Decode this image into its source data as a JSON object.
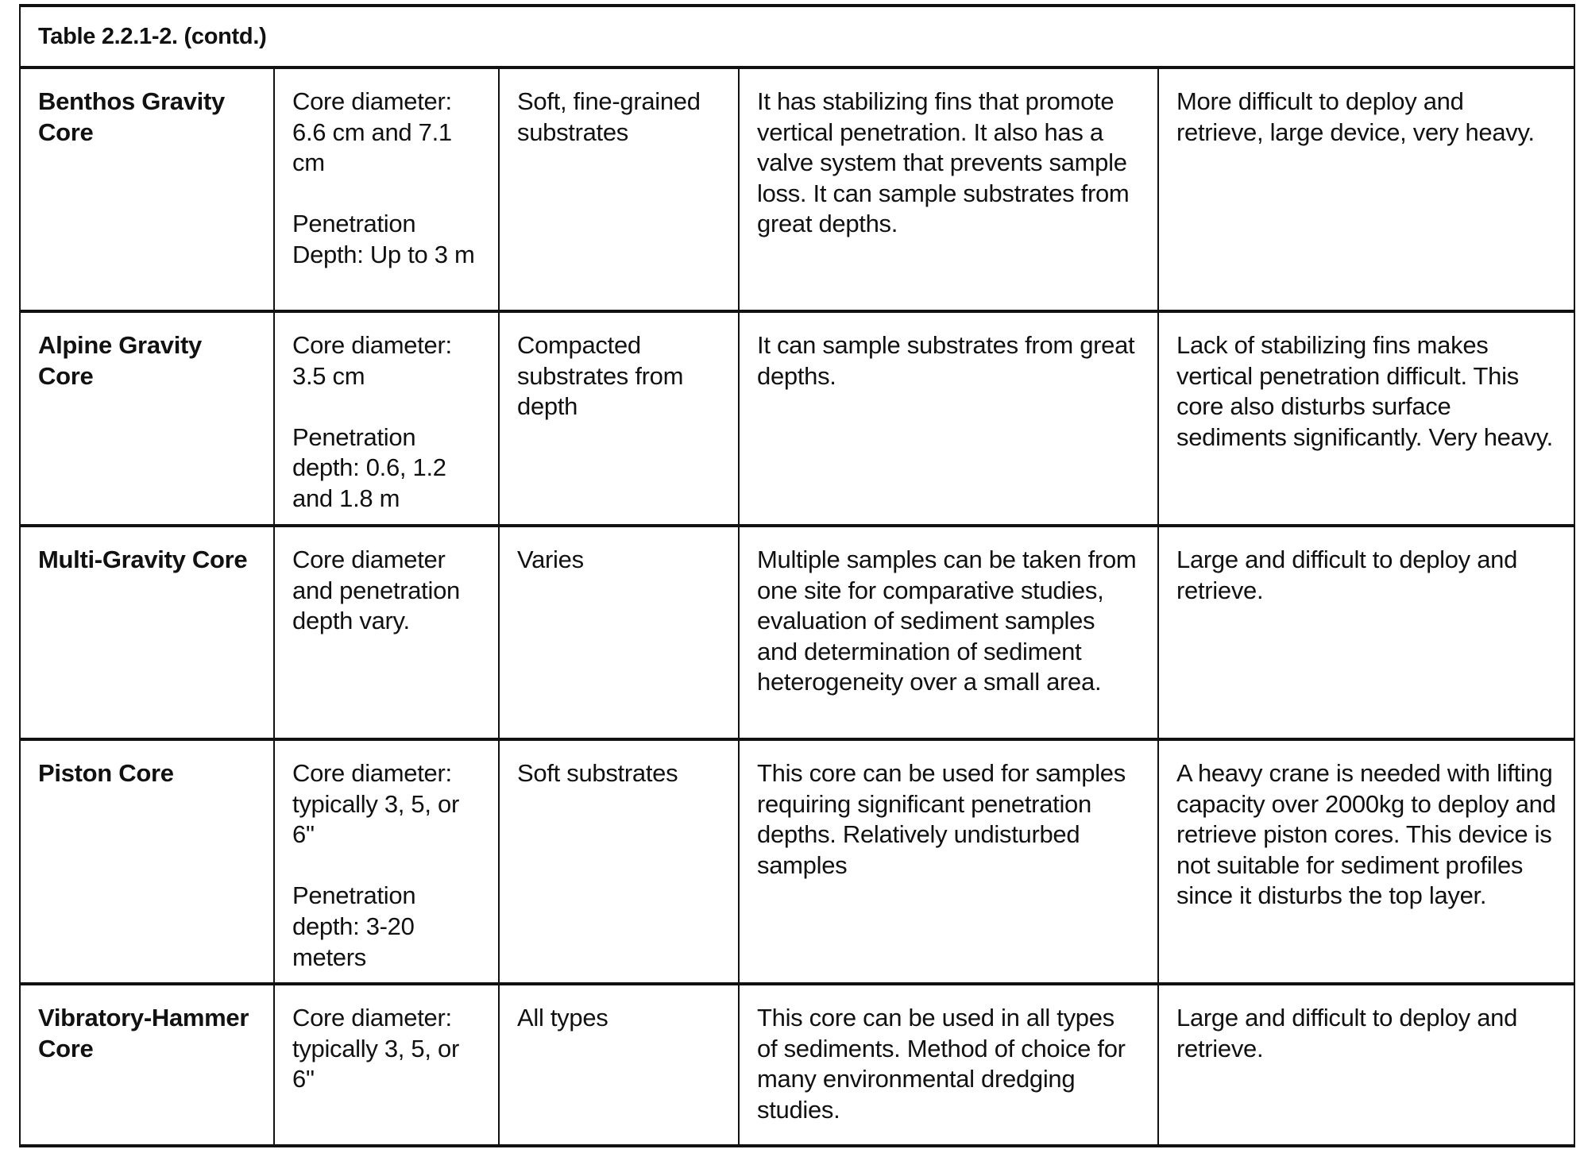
{
  "table": {
    "title": "Table 2.2.1-2.  (contd.)",
    "rows": [
      {
        "name": "Benthos Gravity Core",
        "specs": [
          "Core diameter: 6.6 cm and 7.1 cm",
          "Penetration Depth: Up to 3 m"
        ],
        "substrate": "Soft, fine-grained substrates",
        "advantages": "It has stabilizing fins that promote vertical penetration.  It also has a valve system that prevents sample loss.  It can sample substrates from great depths.",
        "disadvantages": "More difficult to deploy and retrieve, large device, very heavy."
      },
      {
        "name": "Alpine Gravity Core",
        "specs": [
          "Core diameter: 3.5 cm",
          "Penetration depth: 0.6, 1.2 and 1.8 m"
        ],
        "substrate": "Compacted substrates from depth",
        "advantages": "It can sample substrates from great depths.",
        "disadvantages": "Lack of stabilizing fins makes vertical penetration difficult.  This core also disturbs surface sediments significantly.   Very heavy."
      },
      {
        "name": "Multi-Gravity Core",
        "specs": [
          "Core diameter and penetration depth vary."
        ],
        "substrate": "Varies",
        "advantages": "Multiple samples can be taken from one site for comparative studies, evaluation of sediment samples and determination of sediment heterogeneity over a small area.",
        "disadvantages": "Large and difficult to deploy and retrieve."
      },
      {
        "name": "Piston Core",
        "specs": [
          "Core diameter: typically 3, 5, or 6\"",
          "Penetration depth: 3-20 meters"
        ],
        "substrate": "Soft substrates",
        "advantages": "This core can be used for samples requiring significant penetration depths. Relatively undisturbed samples",
        "disadvantages": "A heavy crane is needed with lifting capacity over 2000kg to deploy and retrieve piston cores. This device is not suitable for sediment profiles since it disturbs the top layer."
      },
      {
        "name": "Vibratory-Hammer Core",
        "specs": [
          "Core diameter: typically 3, 5, or 6\""
        ],
        "substrate": "All types",
        "advantages": "This core can be used in all types of sediments. Method of choice for many environmental dredging studies.",
        "disadvantages": "Large and difficult to deploy and retrieve."
      }
    ]
  }
}
